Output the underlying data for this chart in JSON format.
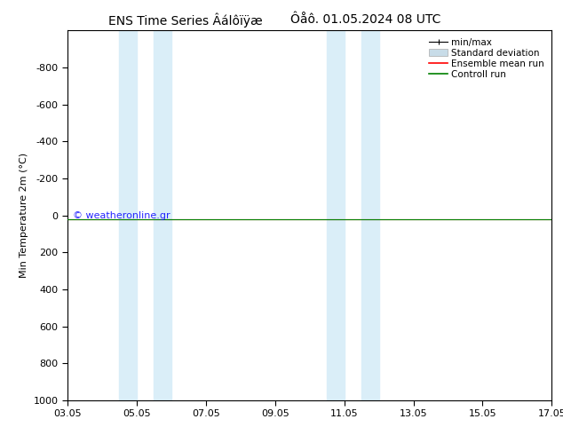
{
  "title1": "ENS Time Series Âálôïÿæ",
  "title2": "Ôåô. 01.05.2024 08 UTC",
  "ylabel": "Min Temperature 2m (°C)",
  "ylim_bottom": 1000,
  "ylim_top": -1000,
  "yticks": [
    -800,
    -600,
    -400,
    -200,
    0,
    200,
    400,
    600,
    800,
    1000
  ],
  "x_start": 0,
  "x_end": 14,
  "xtick_labels": [
    "03.05",
    "05.05",
    "07.05",
    "09.05",
    "11.05",
    "13.05",
    "15.05",
    "17.05"
  ],
  "xtick_positions": [
    0,
    2,
    4,
    6,
    8,
    10,
    12,
    14
  ],
  "blue_bands": [
    [
      1.5,
      2.0
    ],
    [
      2.5,
      3.0
    ],
    [
      7.5,
      8.0
    ],
    [
      8.5,
      9.0
    ]
  ],
  "green_line_y": 20,
  "red_line_y": 20,
  "background_color": "#ffffff",
  "band_color": "#daeef8",
  "green_color": "#008000",
  "red_color": "#ff0000",
  "watermark": "© weatheronline.gr",
  "legend_labels": [
    "min/max",
    "Standard deviation",
    "Ensemble mean run",
    "Controll run"
  ],
  "title_fontsize": 10,
  "axis_fontsize": 8,
  "legend_fontsize": 7.5
}
